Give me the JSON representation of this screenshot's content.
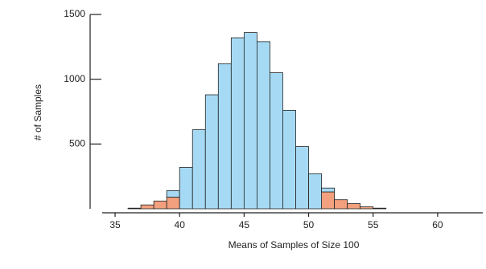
{
  "chart_data": {
    "type": "histogram",
    "xlabel": "Means of Samples of Size 100",
    "ylabel": "# of Samples",
    "bins": [
      36,
      37,
      38,
      39,
      40,
      41,
      42,
      43,
      44,
      45,
      46,
      47,
      48,
      49,
      50,
      51,
      52,
      53,
      54,
      55,
      56
    ],
    "series": [
      {
        "color": "#f2a07e",
        "values": [
          5,
          30,
          60,
          90,
          0,
          0,
          0,
          0,
          0,
          0,
          0,
          0,
          0,
          0,
          0,
          130,
          70,
          40,
          15,
          5
        ]
      },
      {
        "color": "#a6daf4",
        "values": [
          0,
          0,
          0,
          50,
          320,
          610,
          880,
          1120,
          1320,
          1360,
          1290,
          1050,
          760,
          480,
          270,
          30,
          0,
          0,
          0,
          0
        ]
      }
    ],
    "stacked": true,
    "xlim": [
      34,
      63.5
    ],
    "xticks": [
      35,
      40,
      45,
      50,
      55,
      60
    ],
    "ylim": [
      0,
      1500
    ],
    "yticks": [
      500,
      1000,
      1500
    ]
  }
}
